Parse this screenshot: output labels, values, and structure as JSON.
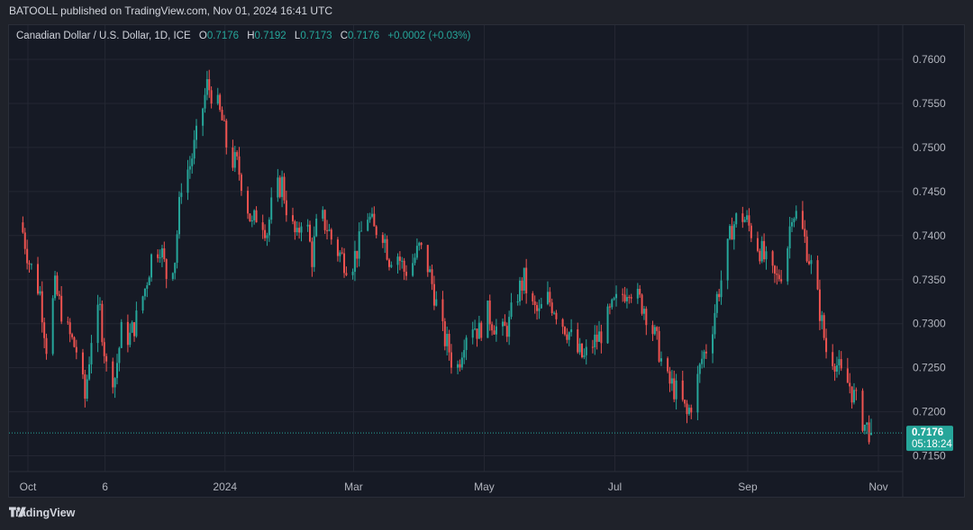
{
  "header": {
    "published_line": "BATOOLL published on TradingView.com, Nov 01, 2024 16:41 UTC"
  },
  "legend": {
    "symbol": "Canadian Dollar / U.S. Dollar, 1D, ICE",
    "o_label": "O",
    "o_value": "0.7176",
    "h_label": "H",
    "h_value": "0.7192",
    "l_label": "L",
    "l_value": "0.7173",
    "c_label": "C",
    "c_value": "0.7176",
    "change": "+0.0002 (+0.03%)"
  },
  "price_tag": {
    "price": "0.7176",
    "countdown": "05:18:24"
  },
  "footer": {
    "brand": "TradingView"
  },
  "colors": {
    "up": "#26a69a",
    "down": "#ef5350",
    "grid": "#242733",
    "background": "#161a25",
    "axis_text": "#b2b5be"
  },
  "chart_data": {
    "type": "candlestick",
    "title": "Canadian Dollar / U.S. Dollar, 1D, ICE",
    "y_ticks": [
      "0.7600",
      "0.7550",
      "0.7500",
      "0.7450",
      "0.7400",
      "0.7350",
      "0.7300",
      "0.7250",
      "0.7200",
      "0.7150"
    ],
    "x_ticks": [
      "Oct",
      "6",
      "2024",
      "Mar",
      "May",
      "Jul",
      "Sep",
      "Nov"
    ],
    "ylim": [
      0.7145,
      0.761
    ],
    "grid": true,
    "last_price": 0.7176,
    "price_path": [
      [
        "2023-10-01",
        0.7415
      ],
      [
        "2023-10-05",
        0.737
      ],
      [
        "2023-10-10",
        0.7335
      ],
      [
        "2023-10-13",
        0.7275
      ],
      [
        "2023-10-17",
        0.734
      ],
      [
        "2023-10-23",
        0.729
      ],
      [
        "2023-10-27",
        0.727
      ],
      [
        "2023-10-31",
        0.7215
      ],
      [
        "2023-11-03",
        0.7285
      ],
      [
        "2023-11-07",
        0.7315
      ],
      [
        "2023-11-10",
        0.725
      ],
      [
        "2023-11-14",
        0.724
      ],
      [
        "2023-11-17",
        0.729
      ],
      [
        "2023-11-21",
        0.7285
      ],
      [
        "2023-11-24",
        0.7305
      ],
      [
        "2023-11-28",
        0.734
      ],
      [
        "2023-12-01",
        0.7375
      ],
      [
        "2023-12-05",
        0.739
      ],
      [
        "2023-12-08",
        0.7355
      ],
      [
        "2023-12-12",
        0.7375
      ],
      [
        "2023-12-15",
        0.746
      ],
      [
        "2023-12-19",
        0.748
      ],
      [
        "2023-12-22",
        0.751
      ],
      [
        "2023-12-27",
        0.757
      ],
      [
        "2023-12-30",
        0.756
      ],
      [
        "2024-01-03",
        0.753
      ],
      [
        "2024-01-06",
        0.749
      ],
      [
        "2024-01-10",
        0.748
      ],
      [
        "2024-01-13",
        0.7455
      ],
      [
        "2024-01-17",
        0.741
      ],
      [
        "2024-01-20",
        0.743
      ],
      [
        "2024-01-24",
        0.7405
      ],
      [
        "2024-01-27",
        0.7445
      ],
      [
        "2024-01-31",
        0.746
      ],
      [
        "2024-02-03",
        0.742
      ],
      [
        "2024-02-07",
        0.7395
      ],
      [
        "2024-02-10",
        0.7435
      ],
      [
        "2024-02-14",
        0.7375
      ],
      [
        "2024-02-17",
        0.7425
      ],
      [
        "2024-02-21",
        0.741
      ],
      [
        "2024-02-24",
        0.739
      ],
      [
        "2024-02-28",
        0.7375
      ],
      [
        "2024-03-03",
        0.7365
      ],
      [
        "2024-03-07",
        0.739
      ],
      [
        "2024-03-10",
        0.743
      ],
      [
        "2024-03-14",
        0.7405
      ],
      [
        "2024-03-17",
        0.7415
      ],
      [
        "2024-03-21",
        0.7375
      ],
      [
        "2024-03-24",
        0.7385
      ],
      [
        "2024-03-28",
        0.736
      ],
      [
        "2024-03-31",
        0.7365
      ],
      [
        "2024-04-04",
        0.7385
      ],
      [
        "2024-04-07",
        0.7375
      ],
      [
        "2024-04-11",
        0.7335
      ],
      [
        "2024-04-14",
        0.7295
      ],
      [
        "2024-04-18",
        0.727
      ],
      [
        "2024-04-21",
        0.724
      ],
      [
        "2024-04-25",
        0.7285
      ],
      [
        "2024-04-28",
        0.7305
      ],
      [
        "2024-05-02",
        0.729
      ],
      [
        "2024-05-05",
        0.7315
      ],
      [
        "2024-05-09",
        0.73
      ],
      [
        "2024-05-12",
        0.7285
      ],
      [
        "2024-05-16",
        0.73
      ],
      [
        "2024-05-19",
        0.733
      ],
      [
        "2024-05-23",
        0.735
      ],
      [
        "2024-05-26",
        0.732
      ],
      [
        "2024-05-30",
        0.731
      ],
      [
        "2024-06-02",
        0.733
      ],
      [
        "2024-06-06",
        0.732
      ],
      [
        "2024-06-09",
        0.7305
      ],
      [
        "2024-06-13",
        0.729
      ],
      [
        "2024-06-16",
        0.727
      ],
      [
        "2024-06-20",
        0.726
      ],
      [
        "2024-06-23",
        0.7275
      ],
      [
        "2024-06-27",
        0.7285
      ],
      [
        "2024-06-30",
        0.73
      ],
      [
        "2024-07-04",
        0.732
      ],
      [
        "2024-07-07",
        0.733
      ],
      [
        "2024-07-11",
        0.7345
      ],
      [
        "2024-07-14",
        0.733
      ],
      [
        "2024-07-18",
        0.732
      ],
      [
        "2024-07-21",
        0.73
      ],
      [
        "2024-07-25",
        0.727
      ],
      [
        "2024-07-28",
        0.7235
      ],
      [
        "2024-07-31",
        0.723
      ],
      [
        "2024-08-04",
        0.7215
      ],
      [
        "2024-08-07",
        0.7195
      ],
      [
        "2024-08-11",
        0.7225
      ],
      [
        "2024-08-14",
        0.726
      ],
      [
        "2024-08-18",
        0.7285
      ],
      [
        "2024-08-21",
        0.733
      ],
      [
        "2024-08-25",
        0.737
      ],
      [
        "2024-08-28",
        0.741
      ],
      [
        "2024-09-01",
        0.7425
      ],
      [
        "2024-09-04",
        0.7415
      ],
      [
        "2024-09-08",
        0.7395
      ],
      [
        "2024-09-11",
        0.738
      ],
      [
        "2024-09-15",
        0.7355
      ],
      [
        "2024-09-18",
        0.735
      ],
      [
        "2024-09-22",
        0.737
      ],
      [
        "2024-09-25",
        0.743
      ],
      [
        "2024-09-28",
        0.742
      ],
      [
        "2024-10-01",
        0.7395
      ],
      [
        "2024-10-04",
        0.7365
      ],
      [
        "2024-10-08",
        0.7315
      ],
      [
        "2024-10-11",
        0.727
      ],
      [
        "2024-10-15",
        0.726
      ],
      [
        "2024-10-18",
        0.724
      ],
      [
        "2024-10-22",
        0.723
      ],
      [
        "2024-10-25",
        0.721
      ],
      [
        "2024-10-29",
        0.7185
      ],
      [
        "2024-11-01",
        0.7176
      ]
    ]
  }
}
